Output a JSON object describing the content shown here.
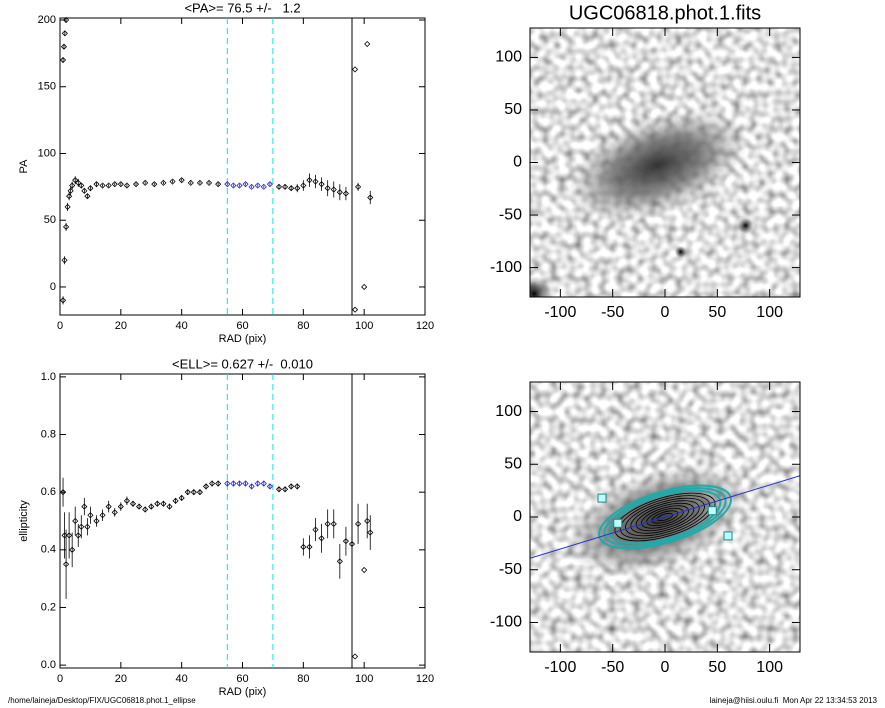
{
  "chart_data": [
    {
      "type": "scatter",
      "title": "<PA>= 76.5 +/-   1.2",
      "xlabel": "RAD (pix)",
      "ylabel": "PA",
      "xlim": [
        0,
        120
      ],
      "ylim": [
        -21,
        201.5
      ],
      "xticks": [
        0,
        20,
        40,
        60,
        80,
        100,
        120
      ],
      "yticks": [
        0,
        50,
        100,
        150,
        200
      ],
      "vlines": [
        55,
        70,
        96
      ],
      "vline_colors": [
        "#00e5ee",
        "#00e5ee",
        "#000000"
      ],
      "vline_dashed": [
        true,
        true,
        false
      ],
      "series": [
        {
          "color": "#000000",
          "x": [
            1,
            1.3,
            1.6,
            2
          ],
          "values": [
            170,
            180,
            190,
            200
          ],
          "errors": [
            2,
            2,
            2,
            2
          ]
        },
        {
          "color": "#000000",
          "x": [
            1,
            1.5,
            2,
            2.5,
            3,
            3.5,
            4,
            5,
            6,
            7,
            8,
            9,
            10,
            12,
            14,
            16,
            18,
            20,
            22,
            25,
            28,
            31,
            34,
            37,
            40,
            43,
            46,
            49,
            52
          ],
          "values": [
            -10,
            20,
            45,
            60,
            68,
            72,
            76,
            80,
            78,
            76,
            72,
            68,
            74,
            77,
            76,
            76,
            77,
            77,
            76,
            77,
            78,
            77,
            78,
            79,
            80,
            78,
            78,
            78,
            77
          ],
          "errors": [
            3,
            3,
            3,
            3,
            3,
            3,
            3,
            3,
            3,
            2,
            2,
            2,
            2,
            2,
            1,
            1,
            1,
            1,
            1,
            1,
            1,
            1,
            1,
            1,
            1,
            1,
            1,
            1,
            1
          ]
        },
        {
          "color": "#2222cc",
          "x": [
            55,
            57,
            59,
            61,
            63,
            65,
            67,
            69
          ],
          "values": [
            77,
            76,
            76,
            77,
            75,
            76,
            75,
            77
          ],
          "errors": [
            1,
            1,
            1,
            1,
            1,
            1,
            1,
            1
          ]
        },
        {
          "color": "#000000",
          "x": [
            72,
            74,
            76,
            78,
            80,
            82,
            84,
            86,
            88,
            90,
            92,
            94,
            97,
            97,
            98,
            100,
            101,
            102
          ],
          "values": [
            75,
            75,
            74,
            74,
            76,
            80,
            79,
            77,
            74,
            73,
            71,
            70,
            163,
            -17,
            75,
            0,
            182,
            67
          ],
          "errors": [
            2,
            2,
            2,
            3,
            4,
            5,
            5,
            5,
            6,
            6,
            6,
            5,
            0,
            0,
            3,
            0,
            0,
            5
          ]
        }
      ]
    },
    {
      "type": "image",
      "title": "UGC06818.phot.1.fits",
      "contours": false,
      "xlim": [
        -129,
        129
      ],
      "ylim": [
        -128,
        128
      ],
      "xticks": [
        -100,
        -50,
        0,
        50,
        100
      ],
      "yticks": [
        -100,
        -50,
        0,
        50,
        100
      ]
    },
    {
      "type": "scatter",
      "title": "<ELL>= 0.627 +/-  0.010",
      "xlabel": "RAD (pix)",
      "ylabel": "ellipticity",
      "xlim": [
        0,
        120
      ],
      "ylim": [
        -0.01,
        1.01
      ],
      "xticks": [
        0,
        20,
        40,
        60,
        80,
        100,
        120
      ],
      "yticks": [
        {
          "value": 0,
          "label": "0.0"
        },
        0.2,
        0.4,
        0.6,
        0.8,
        {
          "value": 1,
          "label": "1.0"
        }
      ],
      "vlines": [
        55,
        70,
        96
      ],
      "vline_colors": [
        "#00e5ee",
        "#00e5ee",
        "#000000"
      ],
      "vline_dashed": [
        true,
        true,
        false
      ],
      "series": [
        {
          "color": "#000000",
          "x": [
            1,
            1.5,
            2,
            3,
            4,
            5,
            6,
            7,
            8,
            9,
            10,
            12,
            14,
            16,
            18,
            20,
            22,
            24,
            26,
            28,
            30,
            32,
            34,
            36,
            38,
            40,
            42,
            44,
            46,
            48,
            50,
            52
          ],
          "values": [
            0.6,
            0.45,
            0.35,
            0.45,
            0.4,
            0.5,
            0.45,
            0.48,
            0.55,
            0.48,
            0.52,
            0.5,
            0.52,
            0.55,
            0.53,
            0.55,
            0.57,
            0.56,
            0.55,
            0.54,
            0.55,
            0.56,
            0.56,
            0.55,
            0.57,
            0.58,
            0.6,
            0.6,
            0.6,
            0.62,
            0.63,
            0.63
          ],
          "errors": [
            0.05,
            0.08,
            0.12,
            0.08,
            0.06,
            0.05,
            0.04,
            0.04,
            0.03,
            0.03,
            0.03,
            0.02,
            0.02,
            0.02,
            0.015,
            0.015,
            0.015,
            0.01,
            0.01,
            0.01,
            0.01,
            0.01,
            0.01,
            0.01,
            0.01,
            0.01,
            0.01,
            0.01,
            0.01,
            0.01,
            0.01,
            0.01
          ]
        },
        {
          "color": "#2222cc",
          "x": [
            55,
            57,
            59,
            61,
            63,
            65,
            67,
            69
          ],
          "values": [
            0.63,
            0.63,
            0.63,
            0.63,
            0.62,
            0.63,
            0.63,
            0.62
          ],
          "errors": [
            0.01,
            0.01,
            0.01,
            0.01,
            0.01,
            0.01,
            0.01,
            0.01
          ]
        },
        {
          "color": "#000000",
          "x": [
            72,
            74,
            76,
            78,
            80,
            82,
            84,
            86,
            88,
            90,
            92,
            94,
            96,
            97,
            98,
            100,
            101,
            102
          ],
          "values": [
            0.61,
            0.61,
            0.62,
            0.62,
            0.41,
            0.41,
            0.47,
            0.44,
            0.49,
            0.49,
            0.36,
            0.43,
            0.42,
            0.03,
            0.49,
            0.33,
            0.5,
            0.46
          ],
          "errors": [
            0.01,
            0.01,
            0.01,
            0.01,
            0.03,
            0.04,
            0.04,
            0.05,
            0.05,
            0.05,
            0.06,
            0.05,
            0.06,
            0,
            0.07,
            0,
            0.06,
            0.06
          ]
        }
      ]
    },
    {
      "type": "image",
      "contours": true,
      "xlim": [
        -129,
        129
      ],
      "ylim": [
        -128,
        128
      ],
      "xticks": [
        -100,
        -50,
        0,
        50,
        100
      ],
      "yticks": [
        -100,
        -50,
        0,
        50,
        100
      ]
    }
  ],
  "footer": {
    "left": "/home/laineja/Desktop/FIX/UGC06818.phot.1_ellipse",
    "right": "laineja@hiisi.oulu.fi  Mon Apr 22 13:34:53 2013"
  }
}
